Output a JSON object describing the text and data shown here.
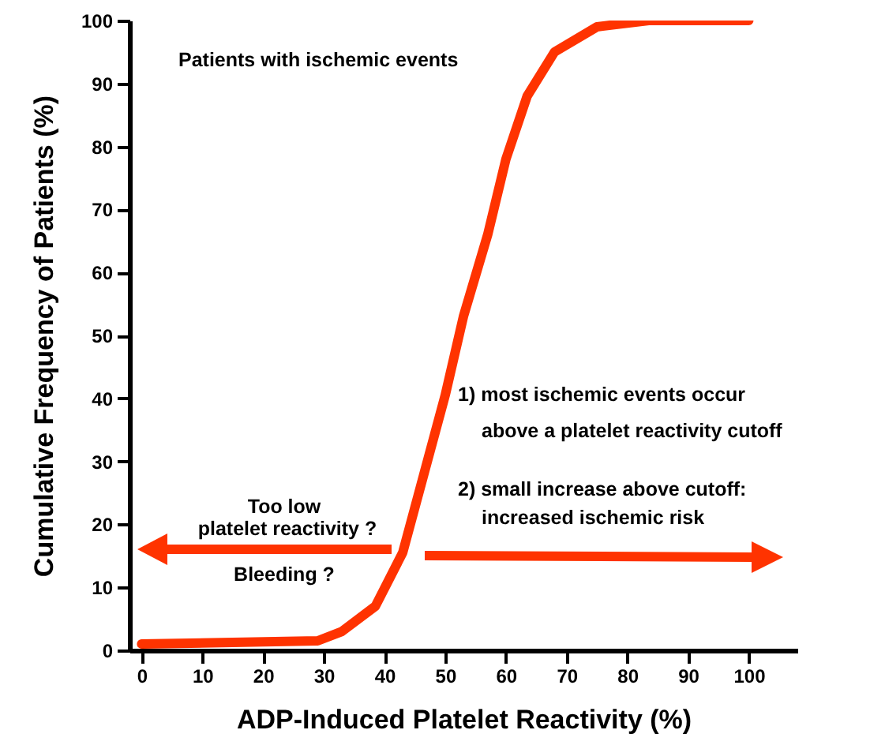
{
  "chart_data": {
    "type": "line",
    "xlabel": "ADP-Induced Platelet Reactivity (%)",
    "ylabel": "Cumulative Frequency of Patients (%)",
    "x": [
      0,
      29,
      33,
      38.5,
      43,
      46.5,
      50,
      53,
      57,
      60,
      63.5,
      68,
      75,
      83.5,
      100
    ],
    "series": [
      {
        "color": "#ff3300",
        "values": [
          1,
          1.5,
          3,
          7,
          15.5,
          28,
          40.5,
          53,
          66,
          78,
          88,
          95,
          99,
          100,
          100
        ]
      }
    ],
    "xlim": [
      -2,
      108
    ],
    "ylim": [
      0,
      100
    ],
    "xticks": [
      0,
      10,
      20,
      30,
      40,
      50,
      60,
      70,
      80,
      90,
      100
    ],
    "yticks": [
      0,
      10,
      20,
      30,
      40,
      50,
      60,
      70,
      80,
      90,
      100
    ],
    "line_style": "solid",
    "annotations": [
      "Patients with ischemic events",
      "1) most ischemic events occur",
      "above a platelet reactivity cutoff",
      "2) small increase above cutoff:",
      "increased ischemic risk",
      "Too low",
      "platelet reactivity ?",
      "Bleeding ?"
    ]
  }
}
